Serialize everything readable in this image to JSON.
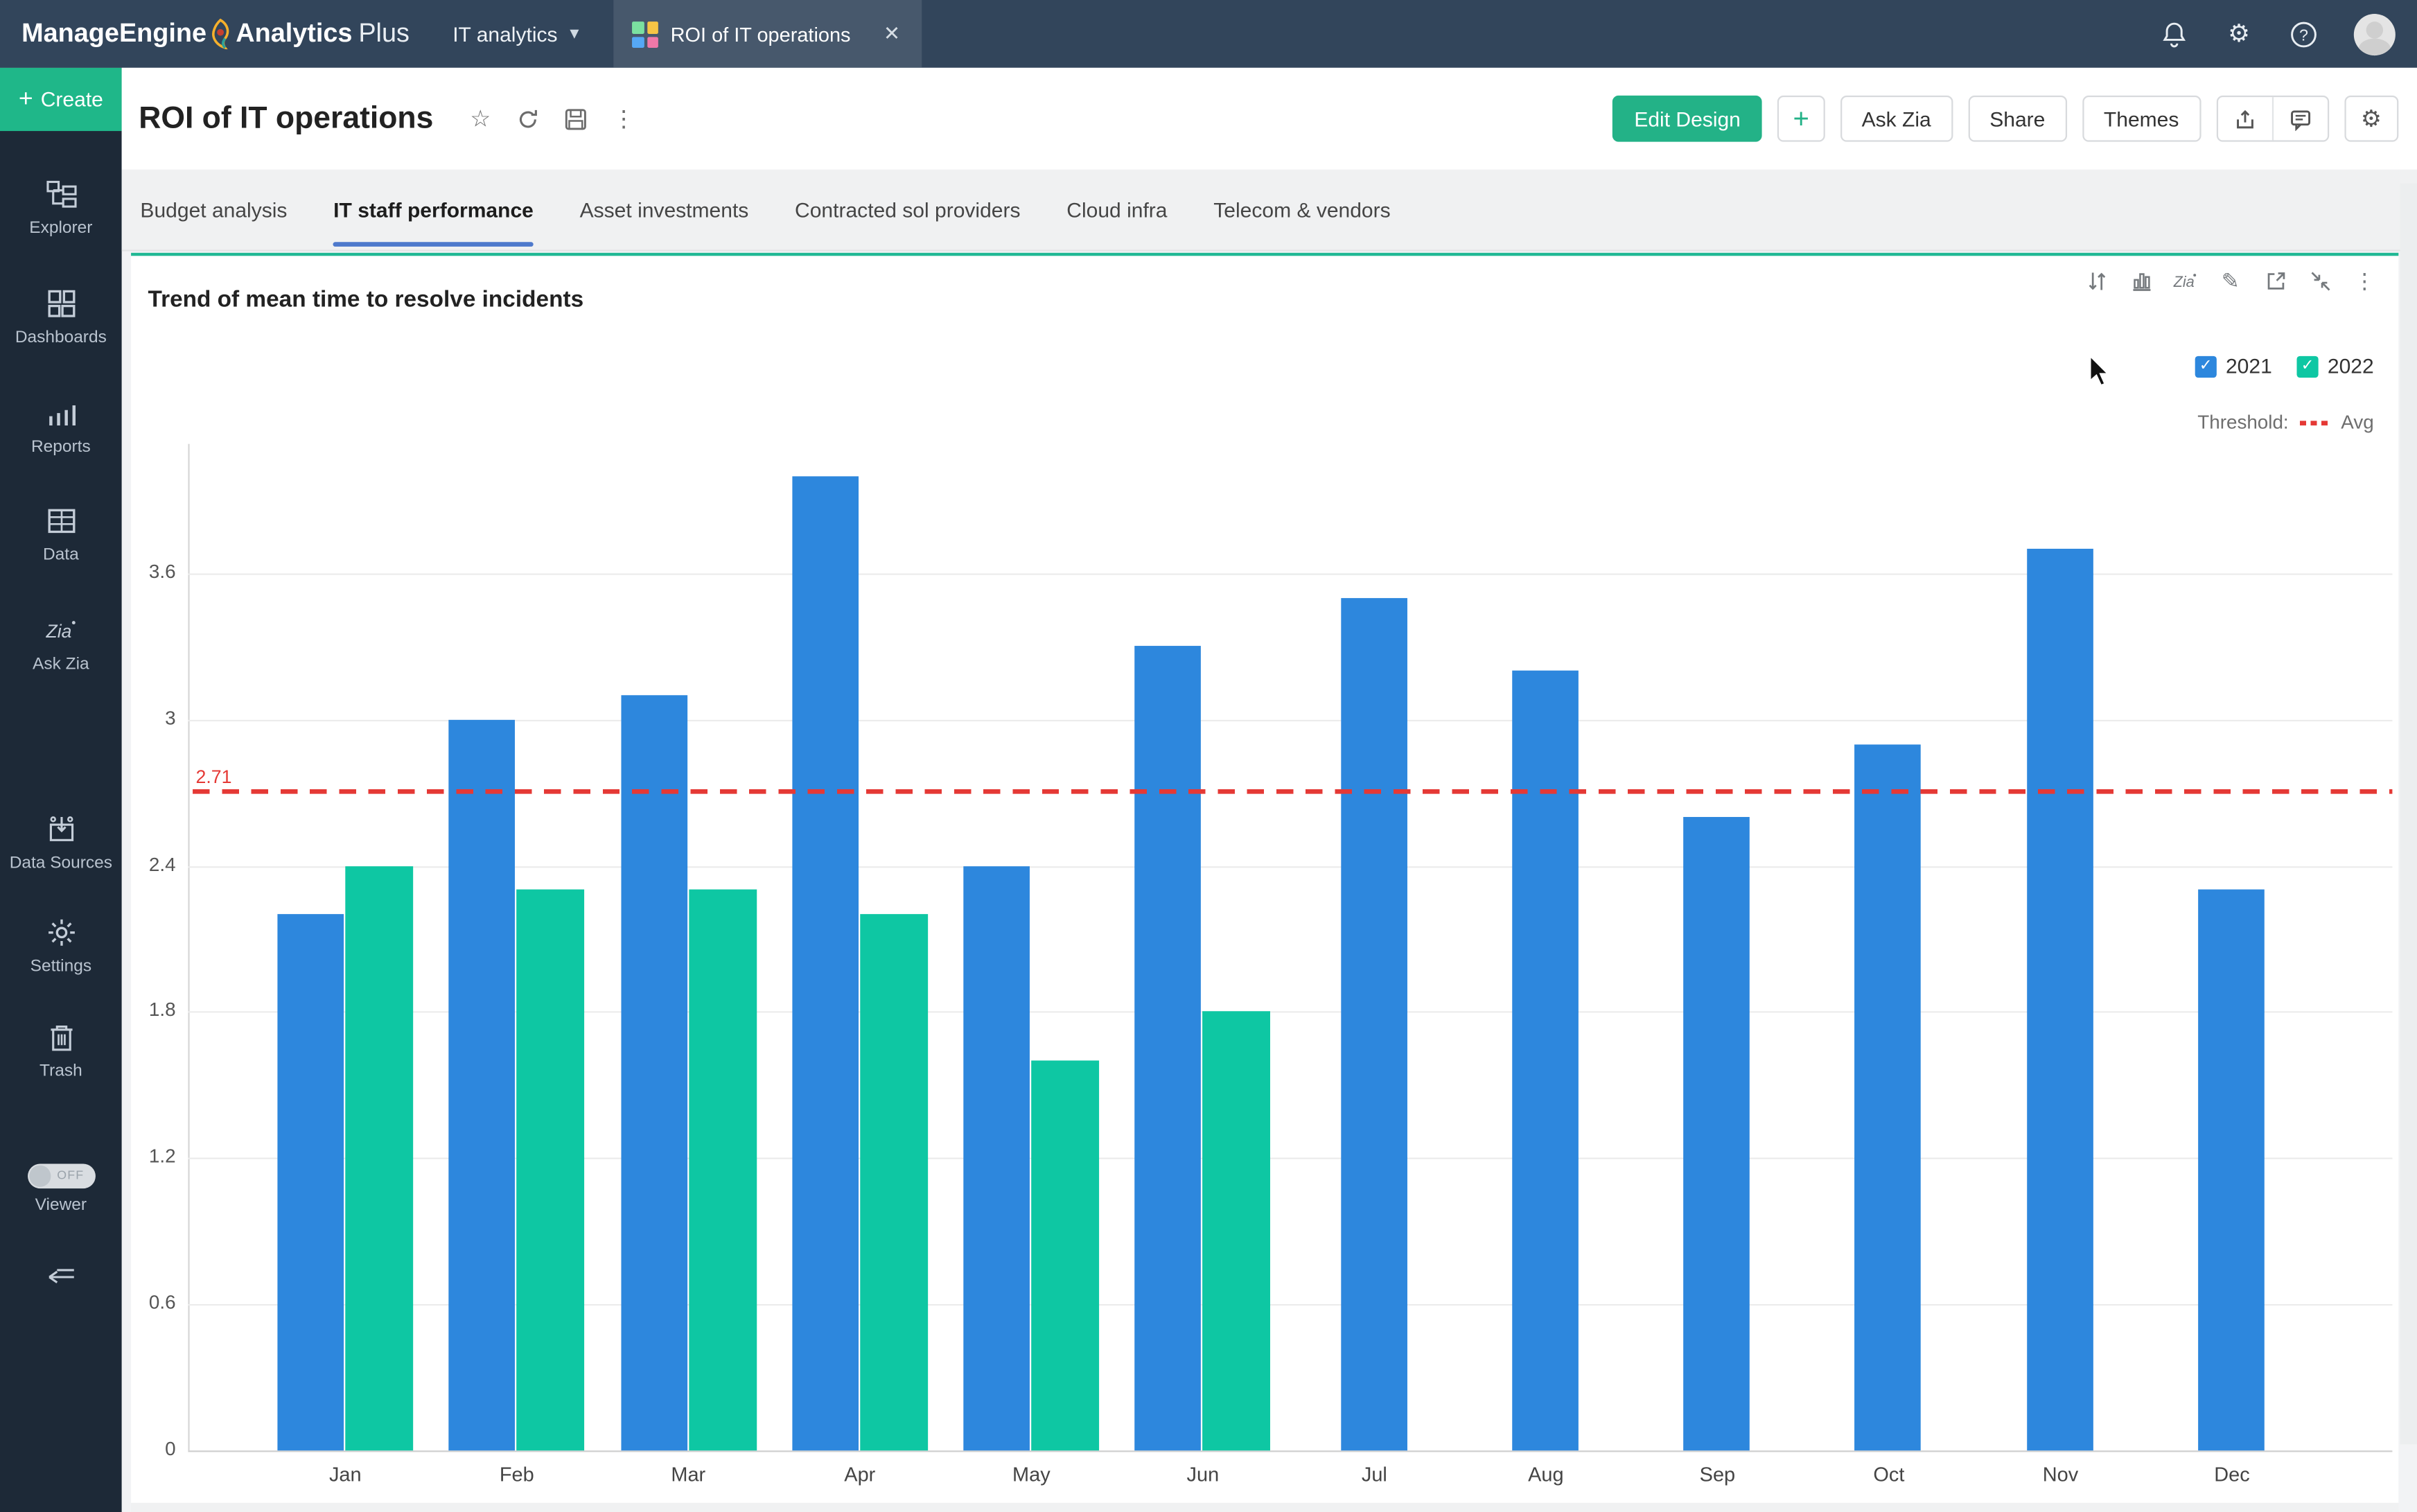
{
  "topbar": {
    "brand_part1": "ManageEngine",
    "brand_part2": "Analytics",
    "brand_part3": "Plus",
    "workspace_label": "IT analytics",
    "open_tab_label": "ROI of IT operations",
    "close_glyph": "✕"
  },
  "header": {
    "title": "ROI of IT operations",
    "edit_design_label": "Edit Design",
    "plus_label": "+",
    "ask_zia_label": "Ask Zia",
    "share_label": "Share",
    "themes_label": "Themes"
  },
  "tabs": [
    {
      "label": "Budget analysis",
      "active": false
    },
    {
      "label": "IT staff performance",
      "active": true
    },
    {
      "label": "Asset investments",
      "active": false
    },
    {
      "label": "Contracted sol providers",
      "active": false
    },
    {
      "label": "Cloud infra",
      "active": false
    },
    {
      "label": "Telecom & vendors",
      "active": false
    }
  ],
  "sidebar": {
    "create_label": "Create",
    "items": [
      {
        "id": "explorer",
        "label": "Explorer"
      },
      {
        "id": "dashboards",
        "label": "Dashboards"
      },
      {
        "id": "reports",
        "label": "Reports"
      },
      {
        "id": "data",
        "label": "Data"
      },
      {
        "id": "ask-zia",
        "label": "Ask Zia"
      },
      {
        "id": "data-sources",
        "label": "Data Sources"
      },
      {
        "id": "settings",
        "label": "Settings"
      },
      {
        "id": "trash",
        "label": "Trash"
      }
    ],
    "viewer_label": "Viewer",
    "viewer_toggle_state": "OFF"
  },
  "chart": {
    "title": "Trend of mean time to resolve incidents",
    "threshold_label": "Threshold:",
    "threshold_name": "Avg",
    "threshold_annotation": "2.71"
  },
  "chart_data": {
    "type": "bar",
    "title": "Trend of mean time to resolve incidents",
    "categories": [
      "Jan",
      "Feb",
      "Mar",
      "Apr",
      "May",
      "Jun",
      "Jul",
      "Aug",
      "Sep",
      "Oct",
      "Nov",
      "Dec"
    ],
    "series": [
      {
        "name": "2021",
        "color": "#2d87dd",
        "values": [
          2.2,
          3.0,
          3.1,
          4.0,
          2.4,
          3.3,
          3.5,
          3.2,
          2.6,
          2.9,
          3.7,
          2.3
        ]
      },
      {
        "name": "2022",
        "color": "#0ec7a3",
        "values": [
          2.4,
          2.3,
          2.3,
          2.2,
          1.6,
          1.8,
          null,
          null,
          null,
          null,
          null,
          null
        ]
      }
    ],
    "threshold": {
      "name": "Avg",
      "value": 2.71,
      "label": "2.71",
      "color": "#e53935"
    },
    "yticks": [
      0,
      0.6,
      1.2,
      1.8,
      2.4,
      3,
      3.6
    ],
    "ytick_labels": [
      "0",
      "0.6",
      "1.2",
      "1.8",
      "2.4",
      "3",
      "3.6"
    ],
    "ylim": [
      0,
      4.1
    ],
    "grid": true,
    "legend_position": "top-right",
    "legend_checked": [
      true,
      true
    ]
  },
  "colors": {
    "accent_green": "#23b287",
    "bar_blue": "#2d87dd",
    "bar_green": "#0ec7a3",
    "threshold_red": "#e53935",
    "topbar_bg": "#32455b",
    "sidebar_bg": "#1d2937",
    "tab_underline": "#4e79cc",
    "panel_top_border": "#21b894"
  }
}
